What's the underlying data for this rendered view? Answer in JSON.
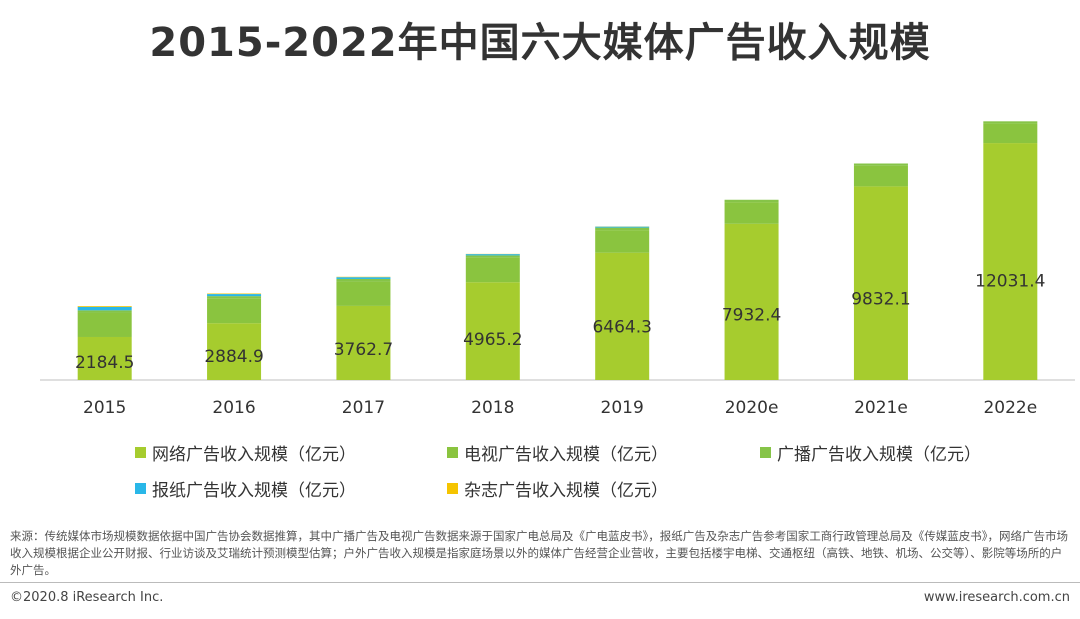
{
  "chart_data": {
    "type": "bar",
    "stacked": true,
    "title": "2015-2022年中国六大媒体广告收入规模",
    "categories": [
      "2015",
      "2016",
      "2017",
      "2018",
      "2019",
      "2020e",
      "2021e",
      "2022e"
    ],
    "ylim": [
      0,
      13000
    ],
    "grid": false,
    "legend_position": "bottom",
    "series": [
      {
        "name": "网络广告收入规模（亿元）",
        "color": "#A6CC2E",
        "values": [
          2184.5,
          2884.9,
          3762.7,
          4965.2,
          6464.3,
          7932.4,
          9832.1,
          12031.4
        ],
        "show_labels": true
      },
      {
        "name": "电视广告收入规模（亿元）",
        "color": "#8AC43F",
        "values": [
          1219.7,
          1239.0,
          1234.4,
          1237.7,
          1146.0,
          1100.0,
          1050.0,
          1000.0
        ],
        "show_labels": false
      },
      {
        "name": "广播广告收入规模（亿元）",
        "color": "#86C448",
        "values": [
          133.0,
          135.0,
          134.0,
          125.0,
          129.0,
          120.0,
          112.0,
          105.0
        ],
        "show_labels": false
      },
      {
        "name": "报纸广告收入规模（亿元）",
        "color": "#29B7E8",
        "values": [
          177.0,
          105.0,
          90.0,
          65.0,
          50.0,
          0,
          0,
          0
        ],
        "show_labels": false
      },
      {
        "name": "杂志广告收入规模（亿元）",
        "color": "#F5C400",
        "values": [
          40.0,
          28.0,
          20.0,
          12.0,
          8.0,
          0,
          0,
          0
        ],
        "show_labels": false
      }
    ]
  },
  "footnote": "来源：传统媒体市场规模数据依据中国广告协会数据推算，其中广播广告及电视广告数据来源于国家广电总局及《广电蓝皮书》，报纸广告及杂志广告参考国家工商行政管理总局及《传媒蓝皮书》，网络广告市场收入规模根据企业公开财报、行业访谈及艾瑞统计预测模型估算；户外广告收入规模是指家庭场景以外的媒体广告经营企业营收，主要包括楼宇电梯、交通枢纽（高铁、地铁、机场、公交等）、影院等场所的户外广告。",
  "copyright": "©2020.8 iResearch Inc.",
  "website": "www.iresearch.com.cn"
}
